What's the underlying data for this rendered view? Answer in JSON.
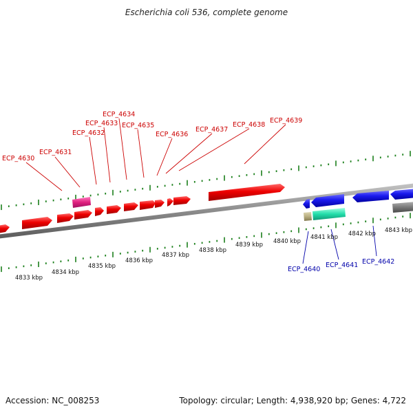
{
  "title": "Escherichia coli 536, complete genome",
  "footer": {
    "accession": "Accession: NC_008253",
    "summary": "Topology: circular; Length: 4,938,920 bp; Genes: 4,722"
  },
  "colors": {
    "top_strand_gene": "#e60000",
    "top_strand_label": "#cc0000",
    "bottom_strand_gene": "#1a1aee",
    "bottom_strand_label": "#0000aa",
    "rna_gene": "#e0207f",
    "teal_gene": "#22ddaa",
    "khaki_gene": "#b8ae80",
    "grey_gene": "#7a7a7a",
    "tick": "#1a7f1a",
    "backbone": "#8c8c8c"
  },
  "kbp_ticks": [
    {
      "pos": 4833,
      "label": "4833 kbp"
    },
    {
      "pos": 4834,
      "label": "4834 kbp"
    },
    {
      "pos": 4835,
      "label": "4835 kbp"
    },
    {
      "pos": 4836,
      "label": "4836 kbp"
    },
    {
      "pos": 4837,
      "label": "4837 kbp"
    },
    {
      "pos": 4838,
      "label": "4838 kbp"
    },
    {
      "pos": 4839,
      "label": "4839 kbp"
    },
    {
      "pos": 4840,
      "label": "4840 kbp"
    },
    {
      "pos": 4841,
      "label": "4841 kbp"
    },
    {
      "pos": 4842,
      "label": "4842 kbp"
    },
    {
      "pos": 4843,
      "label": "4843 kbp"
    }
  ],
  "gene_labels_top": [
    "ECP_4630",
    "ECP_4631",
    "ECP_4632",
    "ECP_4633",
    "ECP_4634",
    "ECP_4635",
    "ECP_4636",
    "ECP_4637",
    "ECP_4638",
    "ECP_4639"
  ],
  "gene_labels_bottom": [
    "ECP_4640",
    "ECP_4641",
    "ECP_4642"
  ]
}
